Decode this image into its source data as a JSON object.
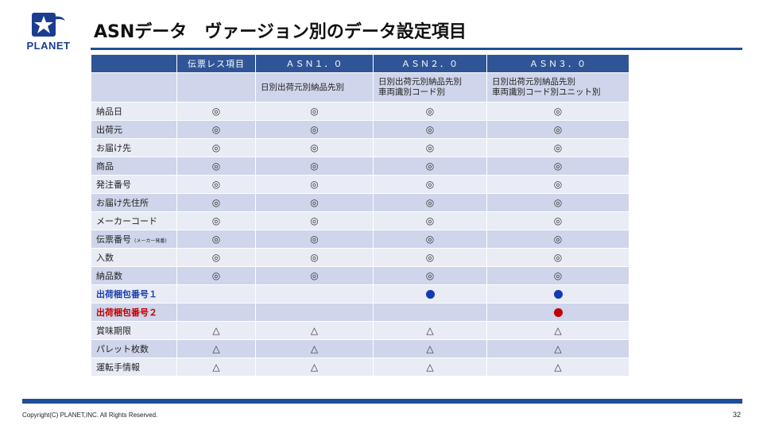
{
  "logo": {
    "text": "PLANET",
    "color": "#1a3d8f"
  },
  "title": "ASNデータ　ヴァージョン別のデータ設定項目",
  "colors": {
    "header": "#2f5597",
    "row_odd": "#cfd5ea",
    "row_even": "#e9ebf5",
    "rule": "#1f4e9a",
    "blue_dot": "#1538b8",
    "red_dot": "#c00000"
  },
  "table": {
    "headers": [
      "",
      "伝票レス項目",
      "ＡＳＮ１．０",
      "ＡＳＮ２．０",
      "ＡＳＮ３．０"
    ],
    "subheaders": [
      "",
      "",
      "日別出荷元別納品先別",
      "日別出荷元別納品先別\n車両識別コード別",
      "日別出荷元別納品先別\n車両識別コード別ユニット別"
    ],
    "rows": [
      {
        "label": "納品日",
        "cells": [
          "◎",
          "◎",
          "◎",
          "◎"
        ]
      },
      {
        "label": "出荷元",
        "cells": [
          "◎",
          "◎",
          "◎",
          "◎"
        ]
      },
      {
        "label": "お届け先",
        "cells": [
          "◎",
          "◎",
          "◎",
          "◎"
        ]
      },
      {
        "label": "商品",
        "cells": [
          "◎",
          "◎",
          "◎",
          "◎"
        ]
      },
      {
        "label": "発注番号",
        "cells": [
          "◎",
          "◎",
          "◎",
          "◎"
        ]
      },
      {
        "label": "お届け先住所",
        "cells": [
          "◎",
          "◎",
          "◎",
          "◎"
        ]
      },
      {
        "label": "メーカーコード",
        "cells": [
          "◎",
          "◎",
          "◎",
          "◎"
        ]
      },
      {
        "label": "伝票番号",
        "note": "(メーカー発番)",
        "cells": [
          "◎",
          "◎",
          "◎",
          "◎"
        ]
      },
      {
        "label": "入数",
        "cells": [
          "◎",
          "◎",
          "◎",
          "◎"
        ]
      },
      {
        "label": "納品数",
        "cells": [
          "◎",
          "◎",
          "◎",
          "◎"
        ]
      },
      {
        "label": "出荷梱包番号１",
        "style": "blue",
        "cells": [
          "",
          "",
          "blue-dot",
          "blue-dot"
        ]
      },
      {
        "label": "出荷梱包番号２",
        "style": "red",
        "cells": [
          "",
          "",
          "",
          "red-dot"
        ]
      },
      {
        "label": "賞味期限",
        "cells": [
          "△",
          "△",
          "△",
          "△"
        ]
      },
      {
        "label": "パレット枚数",
        "cells": [
          "△",
          "△",
          "△",
          "△"
        ]
      },
      {
        "label": "運転手情報",
        "cells": [
          "△",
          "△",
          "△",
          "△"
        ]
      }
    ]
  },
  "footer": {
    "copyright": "Copyright(C) PLANET,INC. All Rights Reserved.",
    "page_number": "32"
  }
}
